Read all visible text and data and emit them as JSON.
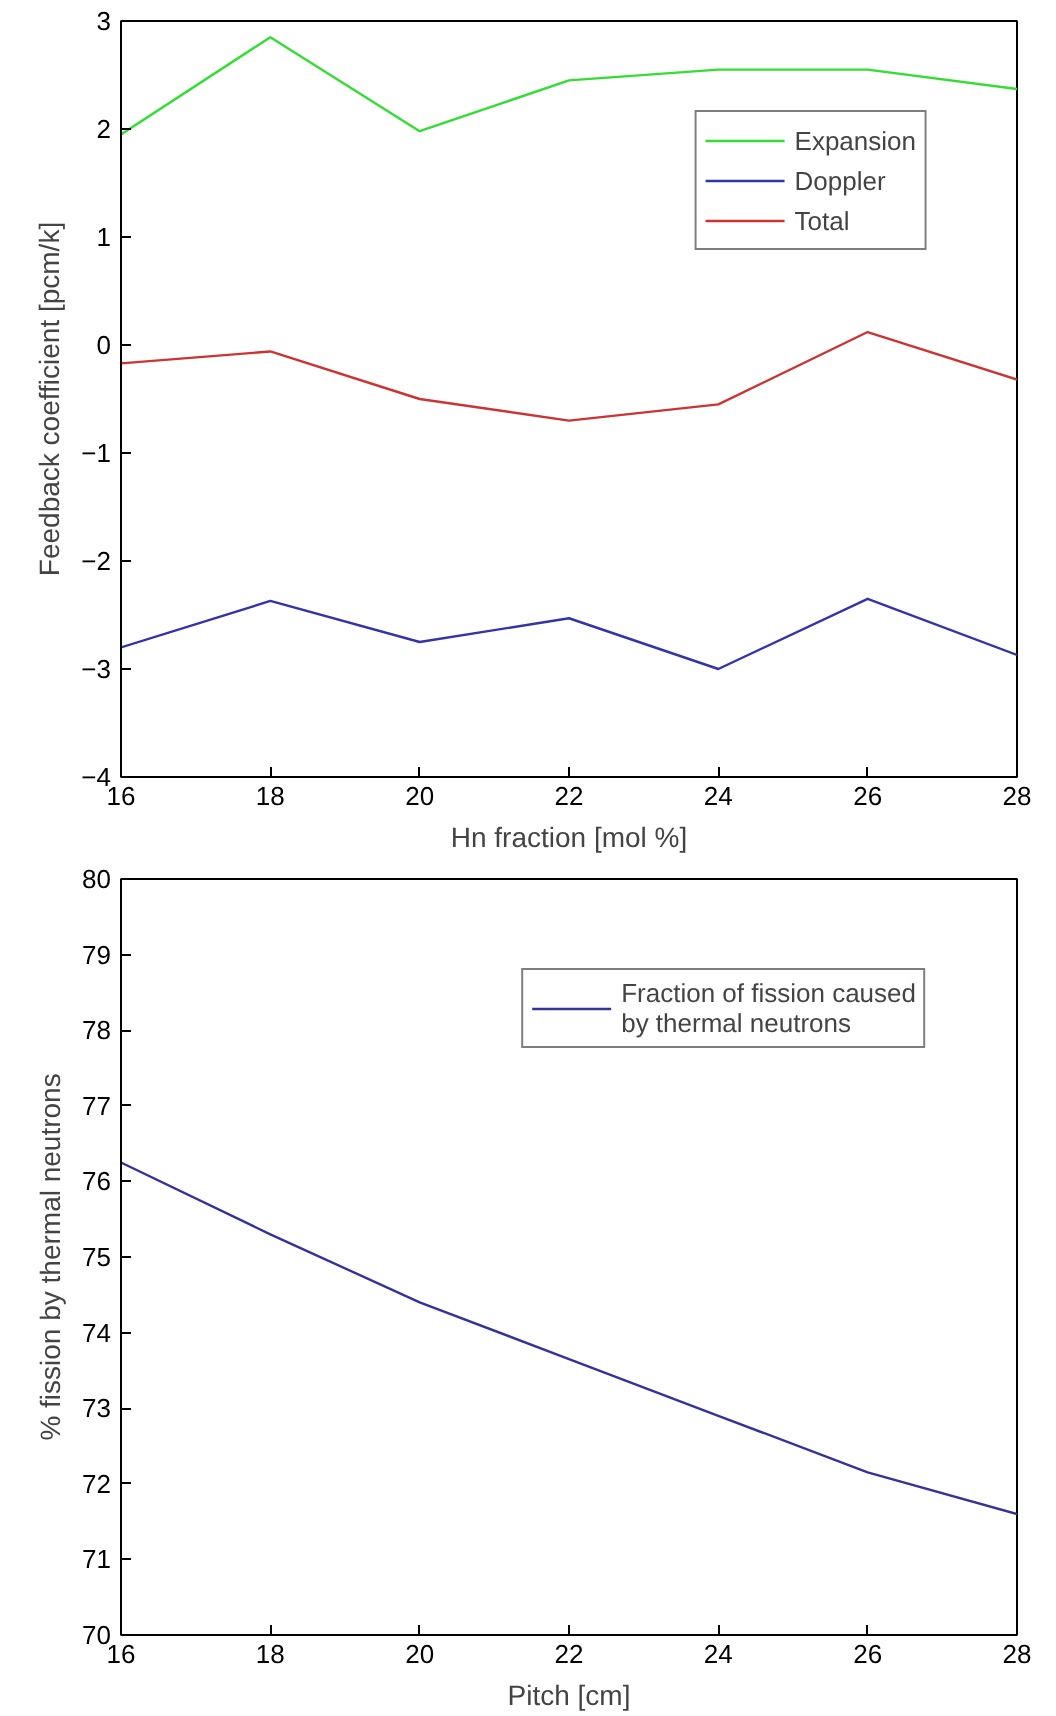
{
  "chart_data": [
    {
      "type": "line",
      "xlabel": "Hn fraction [mol %]",
      "ylabel": "Feedback coefficient [pcm/k]",
      "x": [
        16,
        18,
        20,
        22,
        24,
        26,
        28
      ],
      "series": [
        {
          "name": "Expansion",
          "color": "#33dd33",
          "values": [
            1.95,
            2.85,
            1.98,
            2.45,
            2.55,
            2.55,
            2.37
          ]
        },
        {
          "name": "Doppler",
          "color": "#3333aa",
          "values": [
            -2.8,
            -2.37,
            -2.75,
            -2.53,
            -3.0,
            -2.35,
            -2.87
          ]
        },
        {
          "name": "Total",
          "color": "#cc3333",
          "values": [
            -0.17,
            -0.06,
            -0.5,
            -0.7,
            -0.55,
            0.12,
            -0.32
          ]
        }
      ],
      "xlim": [
        16,
        28
      ],
      "xticks": [
        16,
        18,
        20,
        22,
        24,
        26,
        28
      ],
      "ylim": [
        -4,
        3
      ],
      "yticks": [
        -4,
        -3,
        -2,
        -1,
        0,
        1,
        2,
        3
      ],
      "legend": "top right"
    },
    {
      "type": "line",
      "xlabel": "Pitch [cm]",
      "ylabel": "% fission by thermal neutrons",
      "x": [
        16,
        18,
        20,
        22,
        24,
        26,
        28
      ],
      "series": [
        {
          "name": "Fraction of fission caused\nby thermal neutrons",
          "color": "#333399",
          "values": [
            76.25,
            75.3,
            74.4,
            73.65,
            72.9,
            72.15,
            71.6
          ]
        }
      ],
      "xlim": [
        16,
        28
      ],
      "xticks": [
        16,
        18,
        20,
        22,
        24,
        26,
        28
      ],
      "ylim": [
        70,
        80
      ],
      "yticks": [
        70,
        71,
        72,
        73,
        74,
        75,
        76,
        77,
        78,
        79,
        80
      ],
      "legend": "top right"
    }
  ]
}
